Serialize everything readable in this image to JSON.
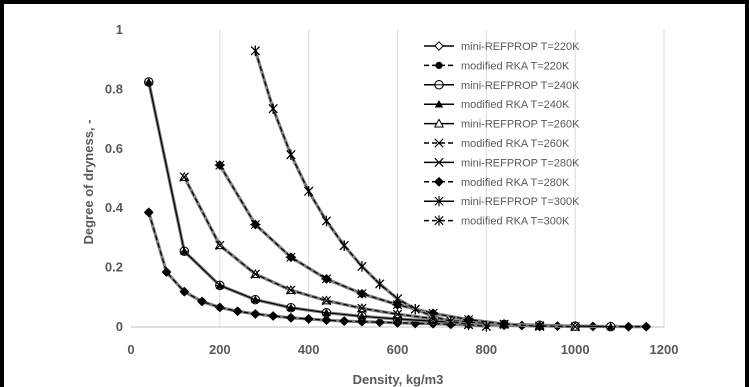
{
  "chart_data": {
    "type": "line",
    "title": "",
    "xlabel": "Density, kg/m3",
    "ylabel": "Degree of dryness, -",
    "xlim": [
      0,
      1200
    ],
    "ylim": [
      0,
      1
    ],
    "x_ticks": [
      "0",
      "200",
      "400",
      "600",
      "800",
      "1000",
      "1200"
    ],
    "y_ticks": [
      "0",
      "0.2",
      "0.4",
      "0.6",
      "0.8",
      "1"
    ],
    "grid": "vertical",
    "legend_position": "right",
    "series": [
      {
        "name": "mini-REFPROP T=220K",
        "marker": "diamond-open",
        "dash": "solid",
        "x": [
          40,
          80,
          120,
          160,
          200,
          240,
          280,
          320,
          360,
          400,
          440,
          480,
          520,
          560,
          600,
          640,
          680,
          720,
          760,
          800,
          840,
          880,
          920,
          960,
          1000,
          1040,
          1080,
          1120,
          1160
        ],
        "y": [
          0.386,
          0.185,
          0.119,
          0.086,
          0.066,
          0.053,
          0.044,
          0.037,
          0.031,
          0.027,
          0.023,
          0.02,
          0.018,
          0.016,
          0.014,
          0.012,
          0.011,
          0.009,
          0.008,
          0.007,
          0.006,
          0.005,
          0.004,
          0.003,
          0.003,
          0.002,
          0.002,
          0.001,
          0.001
        ]
      },
      {
        "name": "modified RKA T=220K",
        "marker": "circle-filled",
        "dash": "dashed",
        "x": [
          40,
          80,
          120,
          160,
          200,
          240,
          280,
          320,
          360,
          400,
          440,
          480,
          520,
          560,
          600,
          640,
          680,
          720,
          760,
          800,
          840,
          880,
          920,
          960,
          1000,
          1040,
          1080,
          1120,
          1160
        ],
        "y": [
          0.386,
          0.185,
          0.119,
          0.086,
          0.066,
          0.053,
          0.044,
          0.037,
          0.031,
          0.027,
          0.023,
          0.02,
          0.018,
          0.016,
          0.014,
          0.012,
          0.011,
          0.009,
          0.008,
          0.007,
          0.006,
          0.005,
          0.004,
          0.003,
          0.003,
          0.002,
          0.002,
          0.001,
          0.001
        ]
      },
      {
        "name": "mini-REFPROP T=240K",
        "marker": "circle-open",
        "dash": "solid",
        "x": [
          40,
          120,
          200,
          280,
          360,
          440,
          520,
          600,
          680,
          760,
          840,
          920,
          1000,
          1080
        ],
        "y": [
          0.825,
          0.255,
          0.14,
          0.092,
          0.065,
          0.048,
          0.036,
          0.027,
          0.02,
          0.014,
          0.009,
          0.006,
          0.003,
          0.001
        ]
      },
      {
        "name": "modified RKA T=240K",
        "marker": "triangle-filled",
        "dash": "solid",
        "x": [
          40,
          120,
          200,
          280,
          360,
          440,
          520,
          600,
          680,
          760,
          840,
          920,
          1000,
          1080
        ],
        "y": [
          0.825,
          0.255,
          0.14,
          0.092,
          0.065,
          0.048,
          0.036,
          0.027,
          0.02,
          0.014,
          0.009,
          0.006,
          0.003,
          0.001
        ]
      },
      {
        "name": "mini-REFPROP T=260K",
        "marker": "triangle-open",
        "dash": "solid",
        "x": [
          120,
          200,
          280,
          360,
          440,
          520,
          600,
          680,
          760,
          840,
          920,
          1000
        ],
        "y": [
          0.505,
          0.275,
          0.178,
          0.124,
          0.089,
          0.063,
          0.043,
          0.028,
          0.017,
          0.009,
          0.004,
          0.001
        ]
      },
      {
        "name": "modified RKA T=260K",
        "marker": "x",
        "dash": "dashed",
        "x": [
          120,
          200,
          280,
          360,
          440,
          520,
          600,
          680,
          760,
          840,
          920,
          1000
        ],
        "y": [
          0.505,
          0.275,
          0.178,
          0.124,
          0.089,
          0.063,
          0.043,
          0.028,
          0.017,
          0.009,
          0.004,
          0.001
        ]
      },
      {
        "name": "mini-REFPROP T=280K",
        "marker": "x-dash",
        "dash": "solid",
        "x": [
          200,
          280,
          360,
          440,
          520,
          600,
          680,
          760,
          840,
          920
        ],
        "y": [
          0.545,
          0.345,
          0.235,
          0.162,
          0.112,
          0.075,
          0.046,
          0.025,
          0.01,
          0.002
        ]
      },
      {
        "name": "modified RKA T=280K",
        "marker": "diamond-filled",
        "dash": "dashed",
        "x": [
          200,
          280,
          360,
          440,
          520,
          600,
          680,
          760,
          840,
          920
        ],
        "y": [
          0.545,
          0.345,
          0.235,
          0.162,
          0.112,
          0.075,
          0.046,
          0.025,
          0.01,
          0.002
        ]
      },
      {
        "name": "mini-REFPROP T=300K",
        "marker": "asterisk",
        "dash": "solid",
        "x": [
          280,
          320,
          360,
          400,
          440,
          480,
          520,
          560,
          600,
          640,
          680,
          720,
          760,
          800
        ],
        "y": [
          0.93,
          0.735,
          0.58,
          0.457,
          0.357,
          0.274,
          0.204,
          0.145,
          0.095,
          0.06,
          0.036,
          0.019,
          0.008,
          0.002
        ]
      },
      {
        "name": "modified RKA T=300K",
        "marker": "asterisk",
        "dash": "dashed",
        "x": [
          280,
          320,
          360,
          400,
          440,
          480,
          520,
          560,
          600,
          640,
          680,
          720,
          760,
          800
        ],
        "y": [
          0.93,
          0.735,
          0.58,
          0.457,
          0.357,
          0.274,
          0.204,
          0.145,
          0.095,
          0.06,
          0.036,
          0.019,
          0.008,
          0.002
        ]
      }
    ],
    "colors": {
      "line": "#000000",
      "grid": "#d9d9d9",
      "text": "#595959",
      "axis": "#bfbfbf"
    }
  }
}
